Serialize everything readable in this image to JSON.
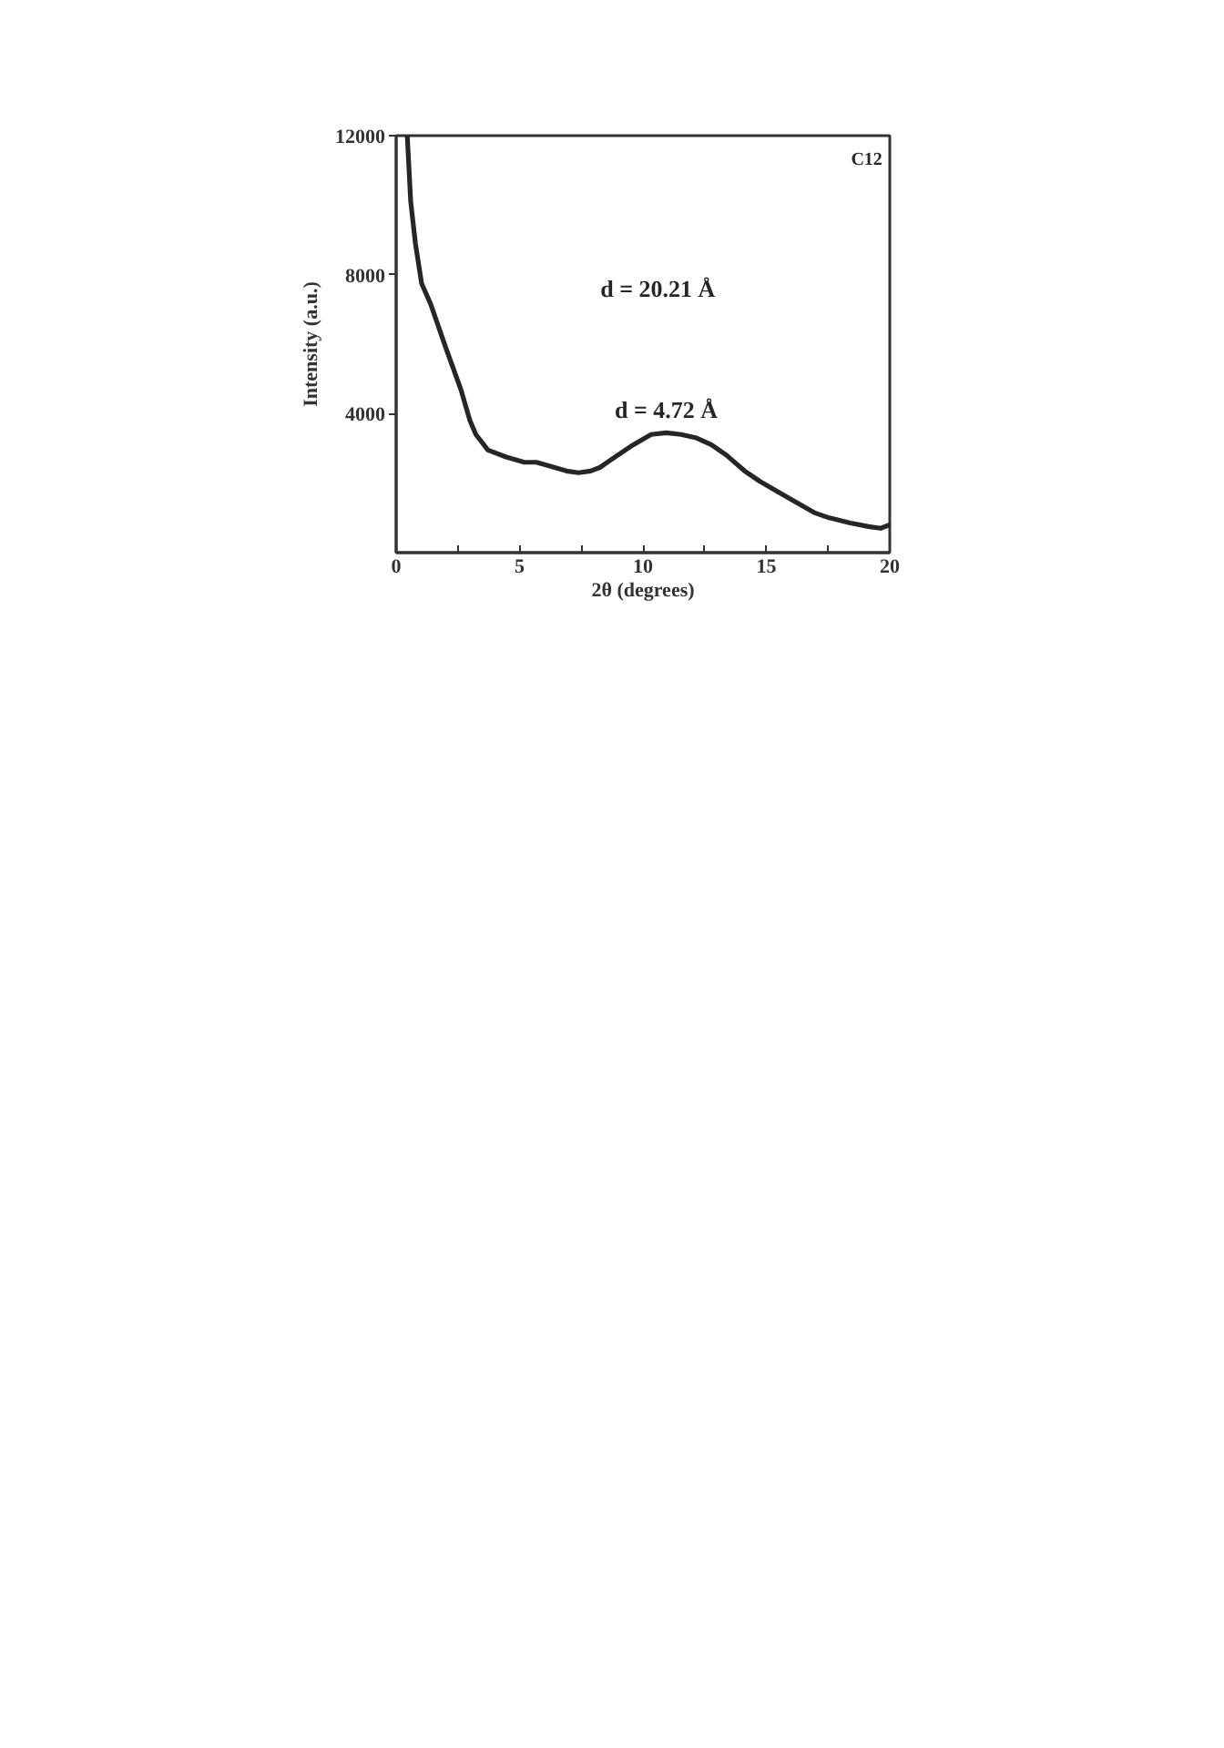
{
  "chart_data": {
    "type": "line",
    "xlabel": "2θ (degrees)",
    "ylabel": "Intensity (a.u.)",
    "x": [
      0.45,
      0.59,
      0.78,
      1.03,
      1.4,
      2.01,
      2.62,
      2.99,
      3.23,
      3.72,
      4.46,
      5.19,
      5.68,
      6.17,
      6.9,
      7.39,
      7.88,
      8.25,
      8.86,
      9.6,
      10.33,
      10.94,
      11.55,
      12.17,
      12.78,
      13.39,
      14.12,
      14.74,
      15.47,
      16.21,
      16.94,
      17.55,
      18.41,
      19.14,
      19.63,
      20.0
    ],
    "series": [
      {
        "color": "#262626",
        "values": [
          12000,
          10100,
          8900,
          7750,
          7150,
          5900,
          4700,
          3800,
          3400,
          2950,
          2750,
          2600,
          2600,
          2500,
          2350,
          2300,
          2350,
          2450,
          2750,
          3100,
          3400,
          3450,
          3400,
          3300,
          3100,
          2800,
          2350,
          2050,
          1750,
          1450,
          1150,
          1000,
          850,
          750,
          700,
          800
        ]
      }
    ],
    "xlim": [
      0,
      20
    ],
    "ylim": [
      0,
      12000
    ],
    "xticks": [
      0,
      {
        "value": 2.5,
        "label": null
      },
      5,
      {
        "value": 7.5,
        "label": null
      },
      10,
      {
        "value": 12.5,
        "label": null
      },
      15,
      {
        "value": 17.5,
        "label": null
      },
      20
    ],
    "yticks": [
      4000,
      8000,
      12000
    ],
    "line_style": "solid",
    "annotations": [
      "C12",
      "d = 20.21 Å",
      {
        "text": "d = 4.72 Å",
        "x": 10.94,
        "y": 3460
      }
    ]
  }
}
